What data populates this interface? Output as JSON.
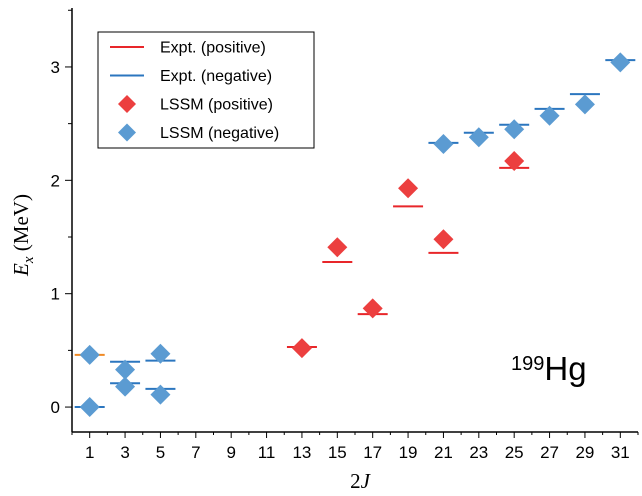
{
  "chart_data": {
    "type": "scatter",
    "xlabel": "2J",
    "ylabel": "E_x (MeV)",
    "xlabel_main": "2",
    "xlabel_italic": "J",
    "ylabel_main": "E",
    "ylabel_sub": "x",
    "ylabel_unit": " (MeV)",
    "xlim": [
      0,
      32
    ],
    "ylim": [
      -0.22,
      3.52
    ],
    "x_ticks": [
      1,
      3,
      5,
      7,
      9,
      11,
      13,
      15,
      17,
      19,
      21,
      23,
      25,
      27,
      29,
      31
    ],
    "y_ticks": [
      0,
      1,
      2,
      3
    ],
    "grid": false,
    "legend_position": "top-left",
    "colors": {
      "expt_positive": "#e8262a",
      "expt_negative": "#2b76bf",
      "lssm_positive": "#ec3f3f",
      "lssm_negative": "#5b9bd2",
      "ground_state": "#f08a24"
    },
    "series": [
      {
        "name": "Expt. (positive)",
        "marker": "hline",
        "points": [
          {
            "x": 13,
            "y": 0.53
          },
          {
            "x": 15,
            "y": 1.28
          },
          {
            "x": 17,
            "y": 0.82
          },
          {
            "x": 19,
            "y": 1.77
          },
          {
            "x": 21,
            "y": 1.36
          },
          {
            "x": 25,
            "y": 2.11
          }
        ]
      },
      {
        "name": "Expt. (negative)",
        "marker": "hline",
        "points": [
          {
            "x": 1,
            "y": 0.0
          },
          {
            "x": 3,
            "y": 0.21
          },
          {
            "x": 3,
            "y": 0.4
          },
          {
            "x": 5,
            "y": 0.16
          },
          {
            "x": 5,
            "y": 0.41
          },
          {
            "x": 21,
            "y": 2.33
          },
          {
            "x": 23,
            "y": 2.42
          },
          {
            "x": 25,
            "y": 2.49
          },
          {
            "x": 27,
            "y": 2.63
          },
          {
            "x": 29,
            "y": 2.76
          },
          {
            "x": 31,
            "y": 3.06
          }
        ]
      },
      {
        "name": "LSSM (positive)",
        "marker": "diamond",
        "points": [
          {
            "x": 13,
            "y": 0.52
          },
          {
            "x": 15,
            "y": 1.41
          },
          {
            "x": 17,
            "y": 0.87
          },
          {
            "x": 19,
            "y": 1.93
          },
          {
            "x": 21,
            "y": 1.48
          },
          {
            "x": 25,
            "y": 2.17
          }
        ]
      },
      {
        "name": "LSSM (negative)",
        "marker": "diamond",
        "points": [
          {
            "x": 1,
            "y": 0.0
          },
          {
            "x": 1,
            "y": 0.46
          },
          {
            "x": 3,
            "y": 0.18
          },
          {
            "x": 3,
            "y": 0.33
          },
          {
            "x": 5,
            "y": 0.11
          },
          {
            "x": 5,
            "y": 0.47
          },
          {
            "x": 21,
            "y": 2.32
          },
          {
            "x": 23,
            "y": 2.38
          },
          {
            "x": 25,
            "y": 2.45
          },
          {
            "x": 27,
            "y": 2.57
          },
          {
            "x": 29,
            "y": 2.67
          },
          {
            "x": 31,
            "y": 3.04
          }
        ]
      },
      {
        "marker": "hline",
        "points": [
          {
            "x": 1,
            "y": 0.46
          }
        ]
      }
    ],
    "annotation": {
      "mass_number": "199",
      "element": "Hg"
    }
  }
}
